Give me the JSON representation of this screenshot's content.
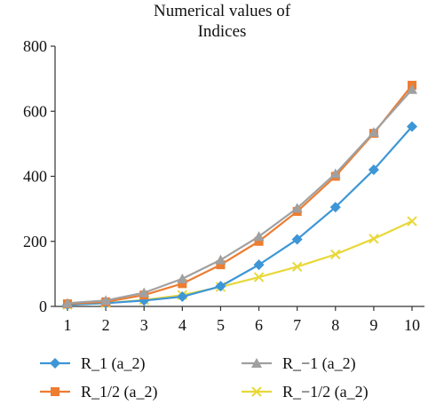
{
  "chart_data": {
    "type": "line",
    "title": "Numerical values of\nIndices",
    "title_lines": [
      "Numerical values of",
      "Indices"
    ],
    "xlabel": "",
    "ylabel": "",
    "x": [
      1,
      2,
      3,
      4,
      5,
      6,
      7,
      8,
      9,
      10
    ],
    "xlim": [
      1,
      10
    ],
    "ylim": [
      0,
      800
    ],
    "yticks": [
      0,
      200,
      400,
      600,
      800
    ],
    "grid": false,
    "legend_position": "bottom",
    "series": [
      {
        "name": "R_1 (a_2)",
        "color": "#3d96d6",
        "marker": "diamond",
        "values": [
          5,
          10,
          18,
          30,
          62,
          128,
          206,
          305,
          420,
          553
        ]
      },
      {
        "name": "R_−1 (a_2)",
        "color": "#a0a0a0",
        "marker": "triangle",
        "values": [
          10,
          18,
          42,
          85,
          143,
          215,
          302,
          408,
          535,
          667
        ]
      },
      {
        "name": "R_1/2 (a_2)",
        "color": "#ed7d31",
        "marker": "square",
        "values": [
          8,
          14,
          35,
          70,
          128,
          200,
          292,
          400,
          532,
          680
        ]
      },
      {
        "name": "R_−1/2 (a_2)",
        "color": "#e8d83a",
        "marker": "x",
        "values": [
          5,
          10,
          20,
          35,
          60,
          90,
          122,
          160,
          208,
          262
        ]
      }
    ]
  }
}
